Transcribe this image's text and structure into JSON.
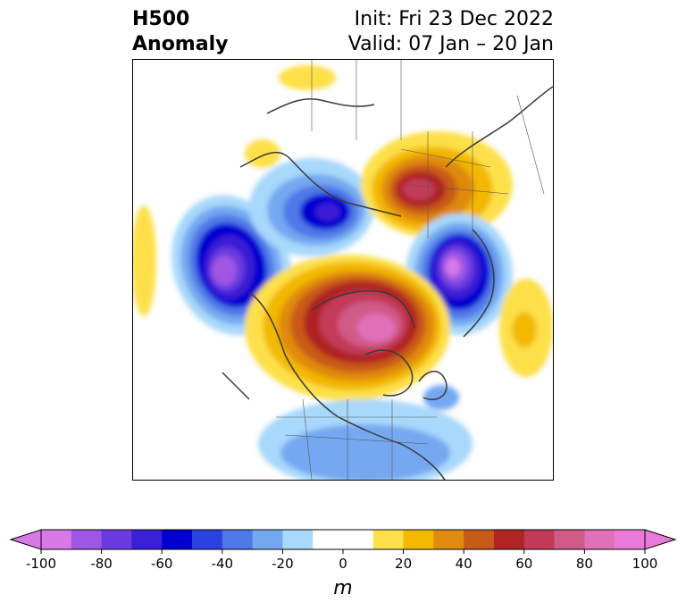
{
  "title": {
    "left_line1": "H500",
    "left_line2": "Anomaly",
    "right_line1": "Init: Fri 23 Dec 2022",
    "right_line2": "Valid: 07 Jan – 20 Jan"
  },
  "colorbar": {
    "unit": "m",
    "min": -100,
    "max": 100,
    "step": 10,
    "extend": "both",
    "tick_labels": [
      "-100",
      "-80",
      "-60",
      "-40",
      "-20",
      "0",
      "20",
      "40",
      "60",
      "80",
      "100"
    ],
    "colors": [
      "#d77ae8",
      "#9f56e3",
      "#6b3ae0",
      "#3a1fd6",
      "#0000d0",
      "#2a42e0",
      "#4f78e8",
      "#74a8f0",
      "#a8d8fb",
      "#ffffff",
      "#ffffff",
      "#fde04a",
      "#f3b800",
      "#e08a10",
      "#c85a18",
      "#b02424",
      "#c23a58",
      "#d05a88",
      "#e070b8",
      "#ea7ad8"
    ],
    "under_color": "#d77ae8",
    "over_color": "#ea7ad8"
  },
  "map": {
    "projection": "north-polar-stereographic",
    "field": "500 hPa geopotential height anomaly"
  }
}
